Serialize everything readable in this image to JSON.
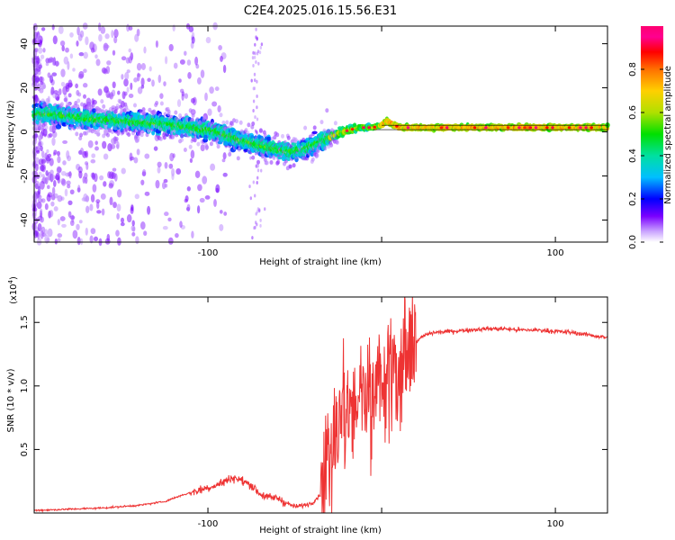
{
  "title": "C2E4.2025.016.15.56.E31",
  "chart_data": [
    {
      "type": "heatmap",
      "xlabel": "Height of straight line (km)",
      "ylabel": "Frequency (Hz)",
      "xlim": [
        -200,
        130
      ],
      "ylim": [
        -50,
        48
      ],
      "xticks": [
        -100,
        0,
        100
      ],
      "xtick_labels": [
        "-100",
        "",
        "100"
      ],
      "yticks": [
        -40,
        -20,
        0,
        20,
        40
      ],
      "yticks_labels": [
        "-40",
        "-20",
        "0",
        "20",
        "40"
      ],
      "ridge": {
        "description": "frequency trace of maximum normalized spectral amplitude",
        "x": [
          -190,
          -170,
          -150,
          -130,
          -110,
          -95,
          -85,
          -75,
          -65,
          -55,
          -45,
          -35,
          -28,
          -22,
          -18,
          -12,
          -5,
          0,
          3,
          10,
          30,
          60,
          100,
          130
        ],
        "y": [
          8,
          6,
          5,
          4,
          2,
          0,
          -3,
          -5,
          -7,
          -9,
          -8,
          -4,
          -2,
          0,
          1,
          2,
          2,
          3,
          5,
          2,
          2,
          2,
          2,
          2
        ]
      },
      "colorbar": {
        "label": "Normalized spectral amplitude",
        "range": [
          0,
          1
        ],
        "ticks": [
          0.0,
          0.2,
          0.4,
          0.6,
          0.8
        ],
        "tick_labels": [
          "0.0",
          "0.2",
          "0.4",
          "0.6",
          "0.8"
        ]
      }
    },
    {
      "type": "line",
      "xlabel": "Height of straight line (km)",
      "ylabel": "SNR (10 * v/v)",
      "scale_label": "(x10",
      "scale_exp": "4",
      "scale_close": ")",
      "xlim": [
        -200,
        130
      ],
      "ylim": [
        0,
        1.7
      ],
      "xticks": [
        -100,
        0,
        100
      ],
      "xtick_labels": [
        "-100",
        "",
        "100"
      ],
      "yticks": [
        0.5,
        1.0,
        1.5
      ],
      "ytick_labels": [
        "0.5",
        "1.0",
        "1.5"
      ],
      "series": [
        {
          "name": "SNR",
          "color": "#ee3333",
          "x": [
            -200,
            -180,
            -160,
            -140,
            -125,
            -115,
            -105,
            -95,
            -90,
            -85,
            -80,
            -75,
            -70,
            -65,
            -60,
            -55,
            -50,
            -45,
            -40,
            -35,
            -32,
            -30,
            -28,
            -26,
            -24,
            -22,
            -20,
            -18,
            -15,
            -12,
            -10,
            -8,
            -6,
            -4,
            -2,
            0,
            2,
            4,
            6,
            8,
            10,
            12,
            14,
            16,
            20,
            25,
            30,
            40,
            50,
            60,
            70,
            80,
            90,
            100,
            110,
            120,
            130
          ],
          "values": [
            0.02,
            0.03,
            0.04,
            0.06,
            0.09,
            0.14,
            0.18,
            0.22,
            0.25,
            0.28,
            0.25,
            0.22,
            0.15,
            0.12,
            0.12,
            0.08,
            0.05,
            0.06,
            0.08,
            0.15,
            0.25,
            0.35,
            0.5,
            0.6,
            0.75,
            0.85,
            0.9,
            0.95,
            0.9,
            1.0,
            0.85,
            1.05,
            0.8,
            0.95,
            1.0,
            1.05,
            0.9,
            1.1,
            1.0,
            1.1,
            0.85,
            1.15,
            1.25,
            1.3,
            1.35,
            1.4,
            1.42,
            1.43,
            1.44,
            1.45,
            1.45,
            1.44,
            1.44,
            1.43,
            1.42,
            1.4,
            1.38
          ]
        }
      ]
    }
  ]
}
